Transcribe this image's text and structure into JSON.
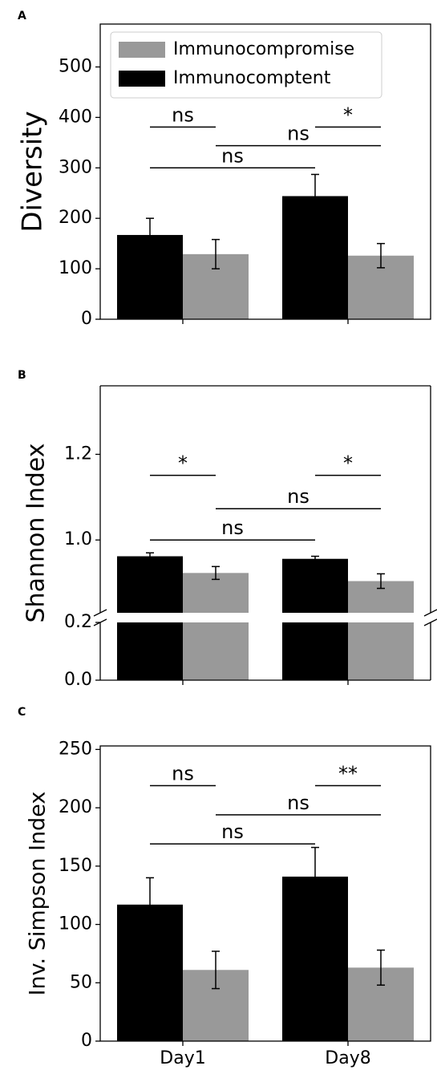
{
  "chart_data": [
    {
      "type": "bar",
      "panel_label": "A",
      "ylabel": "Diversity",
      "categories": [
        null,
        null
      ],
      "series": [
        {
          "name": "Immunocompromise",
          "color": "#999999",
          "values": [
            129,
            126
          ],
          "errors": [
            29,
            24
          ]
        },
        {
          "name": "Immunocomptent",
          "color": "#000000",
          "values": [
            167,
            244
          ],
          "errors": [
            33,
            43
          ]
        }
      ],
      "ylim": [
        0,
        585
      ],
      "yticks": [
        0,
        100,
        200,
        300,
        400,
        500
      ],
      "legend": "upper left",
      "brackets": [
        {
          "label": "ns",
          "y": 381,
          "from": [
            0,
            1
          ],
          "to": [
            0,
            0
          ]
        },
        {
          "label": "ns",
          "y": 344,
          "from": [
            0,
            0
          ],
          "to": [
            1,
            0
          ]
        },
        {
          "label": "ns",
          "y": 300,
          "from": [
            0,
            1
          ],
          "to": [
            1,
            1
          ]
        },
        {
          "label": "*",
          "y": 381,
          "from": [
            1,
            1
          ],
          "to": [
            1,
            0
          ]
        }
      ]
    },
    {
      "type": "bar",
      "panel_label": "B",
      "ylabel": "Shannon Index",
      "categories": [
        null,
        null
      ],
      "series": [
        {
          "color": "#999999",
          "values": [
            0.923,
            0.904
          ],
          "errors": [
            0.015,
            0.017
          ]
        },
        {
          "color": "#000000",
          "values": [
            0.962,
            0.956
          ],
          "errors": [
            0.008,
            0.006
          ]
        }
      ],
      "ylim": [
        0.83,
        1.36
      ],
      "yticks": [
        {
          "value": 1,
          "label": "1.0"
        },
        1.2
      ],
      "broken_axis": {
        "ylim": [
          0,
          0.2
        ],
        "yticks": [
          {
            "value": 0,
            "label": "0.0"
          },
          0.2
        ]
      },
      "brackets": [
        {
          "label": "*",
          "y": 1.151,
          "from": [
            0,
            1
          ],
          "to": [
            0,
            0
          ]
        },
        {
          "label": "ns",
          "y": 1.073,
          "from": [
            0,
            0
          ],
          "to": [
            1,
            0
          ]
        },
        {
          "label": "ns",
          "y": 1.0,
          "from": [
            0,
            1
          ],
          "to": [
            1,
            1
          ]
        },
        {
          "label": "*",
          "y": 1.151,
          "from": [
            1,
            1
          ],
          "to": [
            1,
            0
          ]
        }
      ]
    },
    {
      "type": "bar",
      "panel_label": "C",
      "ylabel": "Inv. Simpson Index",
      "categories": [
        "Day1",
        "Day8"
      ],
      "series": [
        {
          "color": "#999999",
          "values": [
            61,
            63
          ],
          "errors": [
            16,
            15
          ]
        },
        {
          "color": "#000000",
          "values": [
            117,
            141
          ],
          "errors": [
            23,
            25
          ]
        }
      ],
      "ylim": [
        0,
        253
      ],
      "yticks": [
        0,
        50,
        100,
        150,
        200,
        250
      ],
      "brackets": [
        {
          "label": "ns",
          "y": 219,
          "from": [
            0,
            1
          ],
          "to": [
            0,
            0
          ]
        },
        {
          "label": "ns",
          "y": 194,
          "from": [
            0,
            0
          ],
          "to": [
            1,
            0
          ]
        },
        {
          "label": "ns",
          "y": 169,
          "from": [
            0,
            1
          ],
          "to": [
            1,
            1
          ]
        },
        {
          "label": "**",
          "y": 219,
          "from": [
            1,
            1
          ],
          "to": [
            1,
            0
          ]
        }
      ]
    }
  ]
}
